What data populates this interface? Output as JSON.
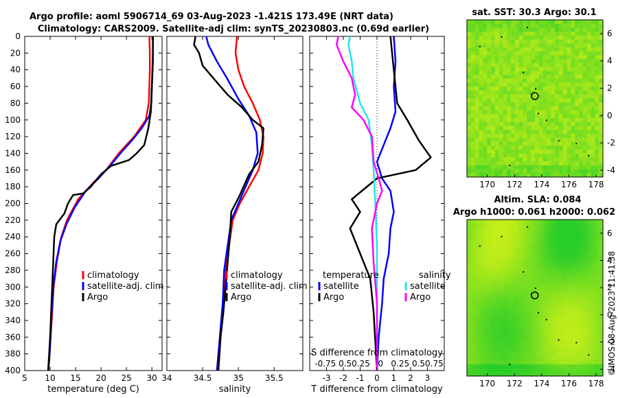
{
  "title_line1": "Argo profile: aoml 5906714_69 03-Aug-2023 -1.421S 173.49E (NRT data)",
  "title_line2": "Climatology: CARS2009. Satellite-adj clim: synTS_20230803.nc (0.69d earlier)",
  "copyright": "©IMOS 08-Aug-2023 11:41:38",
  "colors": {
    "climatology": "#ff0000",
    "satellite": "#0000ff",
    "argo": "#000000",
    "sat_salinity": "#22e5e5",
    "argo_salinity": "#ff00ff",
    "map_green": "#3fd13f",
    "map_yellow": "#d8f51c"
  },
  "chart_data": [
    {
      "id": "temperature",
      "type": "line",
      "xlabel": "temperature (deg C)",
      "xlim": [
        5,
        32
      ],
      "xticks": [
        "5",
        "10",
        "15",
        "20",
        "25",
        "30"
      ],
      "ylim": [
        0,
        400
      ],
      "yticks": [
        "0",
        "20",
        "40",
        "60",
        "80",
        "100",
        "120",
        "140",
        "160",
        "180",
        "200",
        "220",
        "240",
        "260",
        "280",
        "300",
        "320",
        "340",
        "360",
        "380",
        "400"
      ],
      "legend": [
        "climatology",
        "satellite-adj. clim",
        "Argo"
      ],
      "series": [
        {
          "name": "climatology",
          "color": "#ff0000",
          "points": [
            [
              29.5,
              0
            ],
            [
              29.6,
              20
            ],
            [
              29.6,
              40
            ],
            [
              29.5,
              60
            ],
            [
              29.4,
              80
            ],
            [
              28.8,
              100
            ],
            [
              26.5,
              120
            ],
            [
              23.5,
              140
            ],
            [
              21.0,
              160
            ],
            [
              18.5,
              175
            ],
            [
              15.5,
              195
            ],
            [
              13.3,
              220
            ],
            [
              12.2,
              240
            ],
            [
              11.3,
              270
            ],
            [
              10.7,
              300
            ],
            [
              10.3,
              340
            ],
            [
              9.9,
              380
            ],
            [
              9.7,
              400
            ]
          ]
        },
        {
          "name": "satellite-adj. clim",
          "color": "#0000ff",
          "points": [
            [
              30.2,
              0
            ],
            [
              30.2,
              20
            ],
            [
              30.1,
              40
            ],
            [
              30.0,
              60
            ],
            [
              29.9,
              80
            ],
            [
              29.5,
              95
            ],
            [
              28.0,
              110
            ],
            [
              26.0,
              125
            ],
            [
              23.8,
              140
            ],
            [
              21.8,
              155
            ],
            [
              19.5,
              170
            ],
            [
              17.0,
              185
            ],
            [
              14.8,
              205
            ],
            [
              13.2,
              225
            ],
            [
              12.0,
              245
            ],
            [
              11.2,
              270
            ],
            [
              10.6,
              300
            ],
            [
              10.2,
              340
            ],
            [
              9.9,
              380
            ],
            [
              9.6,
              400
            ]
          ]
        },
        {
          "name": "Argo",
          "color": "#000000",
          "points": [
            [
              30.2,
              0
            ],
            [
              30.2,
              30
            ],
            [
              30.0,
              60
            ],
            [
              29.8,
              90
            ],
            [
              29.3,
              110
            ],
            [
              28.5,
              130
            ],
            [
              27.0,
              140
            ],
            [
              25.5,
              148
            ],
            [
              22.0,
              155
            ],
            [
              20.0,
              165
            ],
            [
              18.0,
              180
            ],
            [
              16.5,
              188
            ],
            [
              14.5,
              190
            ],
            [
              13.5,
              200
            ],
            [
              12.8,
              212
            ],
            [
              11.8,
              220
            ],
            [
              11.2,
              225
            ],
            [
              10.8,
              240
            ],
            [
              10.6,
              270
            ],
            [
              10.4,
              300
            ],
            [
              10.2,
              330
            ],
            [
              10.0,
              360
            ],
            [
              9.8,
              380
            ],
            [
              9.6,
              400
            ]
          ]
        }
      ]
    },
    {
      "id": "salinity",
      "type": "line",
      "xlabel": "salinity",
      "xlim": [
        34,
        35.9
      ],
      "xticks": [
        "34",
        "34.5",
        "35",
        "35.5"
      ],
      "ylim": [
        0,
        400
      ],
      "legend": [
        "climatology",
        "satellite-adj. clim",
        "Argo"
      ],
      "series": [
        {
          "name": "climatology",
          "color": "#ff0000",
          "points": [
            [
              34.98,
              0
            ],
            [
              34.96,
              20
            ],
            [
              35.0,
              40
            ],
            [
              35.08,
              60
            ],
            [
              35.2,
              80
            ],
            [
              35.3,
              100
            ],
            [
              35.35,
              120
            ],
            [
              35.34,
              140
            ],
            [
              35.28,
              160
            ],
            [
              35.15,
              180
            ],
            [
              35.02,
              200
            ],
            [
              34.92,
              220
            ],
            [
              34.87,
              250
            ],
            [
              34.82,
              280
            ],
            [
              34.78,
              320
            ],
            [
              34.75,
              360
            ],
            [
              34.72,
              400
            ]
          ]
        },
        {
          "name": "satellite-adj. clim",
          "color": "#0000ff",
          "points": [
            [
              34.55,
              0
            ],
            [
              34.58,
              10
            ],
            [
              34.7,
              30
            ],
            [
              34.84,
              50
            ],
            [
              35.0,
              75
            ],
            [
              35.15,
              95
            ],
            [
              35.25,
              115
            ],
            [
              35.27,
              140
            ],
            [
              35.2,
              160
            ],
            [
              35.1,
              180
            ],
            [
              35.0,
              200
            ],
            [
              34.9,
              220
            ],
            [
              34.85,
              250
            ],
            [
              34.8,
              280
            ],
            [
              34.78,
              320
            ],
            [
              34.74,
              360
            ],
            [
              34.7,
              400
            ]
          ]
        },
        {
          "name": "Argo",
          "color": "#000000",
          "points": [
            [
              34.4,
              0
            ],
            [
              34.38,
              10
            ],
            [
              34.45,
              20
            ],
            [
              34.5,
              35
            ],
            [
              34.6,
              45
            ],
            [
              34.7,
              55
            ],
            [
              34.85,
              70
            ],
            [
              35.05,
              85
            ],
            [
              35.2,
              100
            ],
            [
              35.35,
              110
            ],
            [
              35.33,
              130
            ],
            [
              35.28,
              150
            ],
            [
              35.15,
              165
            ],
            [
              35.02,
              190
            ],
            [
              34.9,
              210
            ],
            [
              34.88,
              240
            ],
            [
              34.85,
              270
            ],
            [
              34.82,
              300
            ],
            [
              34.79,
              330
            ],
            [
              34.75,
              360
            ],
            [
              34.72,
              400
            ]
          ]
        }
      ]
    },
    {
      "id": "differences",
      "type": "line",
      "xlabel": "T difference from climatology",
      "xlabel_top": "S difference from climatology",
      "top_ticks": "-0.75 0.50.25   0   0.25 0.50.75",
      "xlim": [
        -4,
        4
      ],
      "xticks": [
        "-3",
        "-2",
        "-1",
        "0",
        "1",
        "2",
        "3"
      ],
      "ylim": [
        0,
        400
      ],
      "legend_temperature_title": "temperature",
      "legend_salinity_title": "salinity",
      "legend_temperature": [
        "satellite",
        "Argo"
      ],
      "legend_salinity": [
        "satellite",
        "Argo"
      ],
      "series": [
        {
          "name": "T satellite",
          "color": "#0000ff",
          "points": [
            [
              1.0,
              0
            ],
            [
              1.1,
              30
            ],
            [
              1.0,
              60
            ],
            [
              1.1,
              90
            ],
            [
              0.8,
              110
            ],
            [
              0.4,
              130
            ],
            [
              0.0,
              150
            ],
            [
              0.3,
              170
            ],
            [
              0.8,
              185
            ],
            [
              1.0,
              210
            ],
            [
              0.8,
              230
            ],
            [
              0.7,
              260
            ],
            [
              0.4,
              290
            ],
            [
              0.3,
              320
            ],
            [
              0.1,
              360
            ],
            [
              0.0,
              400
            ]
          ]
        },
        {
          "name": "T Argo",
          "color": "#000000",
          "points": [
            [
              0.8,
              0
            ],
            [
              1.0,
              40
            ],
            [
              1.2,
              80
            ],
            [
              1.8,
              100
            ],
            [
              2.5,
              125
            ],
            [
              3.2,
              145
            ],
            [
              2.3,
              160
            ],
            [
              0.0,
              170
            ],
            [
              -1.5,
              195
            ],
            [
              -1.0,
              210
            ],
            [
              -1.6,
              230
            ],
            [
              -1.2,
              250
            ],
            [
              -0.4,
              290
            ],
            [
              -0.2,
              330
            ],
            [
              0.0,
              400
            ]
          ]
        },
        {
          "name": "S satellite",
          "color": "#22e5e5",
          "points": [
            [
              -1.6,
              0
            ],
            [
              -1.7,
              10
            ],
            [
              -1.5,
              30
            ],
            [
              -1.4,
              50
            ],
            [
              -1.0,
              80
            ],
            [
              -0.5,
              100
            ],
            [
              -0.3,
              130
            ],
            [
              -0.2,
              160
            ],
            [
              -0.1,
              200
            ],
            [
              0.0,
              250
            ],
            [
              0.0,
              400
            ]
          ]
        },
        {
          "name": "S Argo",
          "color": "#ff00ff",
          "points": [
            [
              -2.3,
              0
            ],
            [
              -2.4,
              10
            ],
            [
              -2.0,
              30
            ],
            [
              -1.5,
              50
            ],
            [
              -1.3,
              70
            ],
            [
              -1.5,
              85
            ],
            [
              -0.8,
              100
            ],
            [
              -0.3,
              120
            ],
            [
              -0.2,
              150
            ],
            [
              0.1,
              170
            ],
            [
              0.3,
              185
            ],
            [
              0.0,
              200
            ],
            [
              -0.3,
              230
            ],
            [
              -0.2,
              270
            ],
            [
              0.0,
              320
            ],
            [
              0.0,
              400
            ]
          ]
        }
      ]
    },
    {
      "id": "sst_map",
      "type": "heatmap",
      "title": "sat. SST: 30.3 Argo: 30.1",
      "xlim": [
        168.5,
        178.5
      ],
      "ylim": [
        -4.5,
        7
      ],
      "xticks": [
        "170",
        "172",
        "174",
        "176",
        "178"
      ],
      "yticks": [
        "6",
        "4",
        "2",
        "0",
        "-2",
        "-4"
      ],
      "marker": [
        173.49,
        -1.421
      ]
    },
    {
      "id": "sla_map",
      "type": "heatmap",
      "title_line1": "Altim. SLA: 0.084",
      "title_line2": "Argo h1000: 0.061 h2000: 0.062",
      "xlim": [
        168.5,
        178.5
      ],
      "ylim": [
        -4.5,
        7
      ],
      "xticks": [
        "170",
        "172",
        "174",
        "176",
        "178"
      ],
      "yticks": [
        "6",
        "4",
        "2",
        "0",
        "-2",
        "-4"
      ],
      "marker": [
        173.49,
        -1.421
      ]
    }
  ]
}
